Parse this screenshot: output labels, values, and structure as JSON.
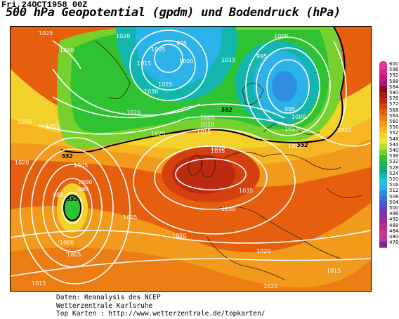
{
  "header": {
    "datetime": "Fri,24OCT1958 00Z",
    "title": "500 hPa Geopotential (gpdm) und Bodendruck (hPa)"
  },
  "legend": {
    "labels": [
      "600",
      "596",
      "592",
      "588",
      "584",
      "580",
      "576",
      "572",
      "568",
      "564",
      "560",
      "556",
      "552",
      "548",
      "544",
      "540",
      "536",
      "532",
      "528",
      "524",
      "520",
      "516",
      "512",
      "508",
      "504",
      "500",
      "496",
      "492",
      "488",
      "484",
      "480",
      "476"
    ],
    "colors": [
      "#e8348e",
      "#d6258c",
      "#c21a86",
      "#a8127e",
      "#8a0a22",
      "#a31b1b",
      "#bd2a12",
      "#d4400e",
      "#e55f0f",
      "#ec7c14",
      "#f29a1c",
      "#f5b524",
      "#f4d22c",
      "#eae83a",
      "#b9dd2f",
      "#76d02d",
      "#2fc233",
      "#1bb456",
      "#12a582",
      "#13b6ae",
      "#1bc8d2",
      "#2bb2e8",
      "#2f8ee4",
      "#3a6fd8",
      "#4d52c8",
      "#6a3cb8",
      "#8b30a6",
      "#a52a94",
      "#bb2a84",
      "#c93a8e",
      "#b43a9c",
      "#7a2a90"
    ]
  },
  "map": {
    "isobar_labels": [
      "1025",
      "1020",
      "1015",
      "1010",
      "1005",
      "1000",
      "995",
      "990",
      "985",
      "1030",
      "1035",
      "1020",
      "1015"
    ],
    "geopotential_labels": [
      "552",
      "552",
      "552",
      "552"
    ]
  },
  "footer": {
    "line1": "Daten: Reanalysis des NCEP",
    "line2": "Wetterzentrale Karlsruhe",
    "line3": "Top Karten :  http://www.wetterzentrale.de/topkarten/"
  }
}
